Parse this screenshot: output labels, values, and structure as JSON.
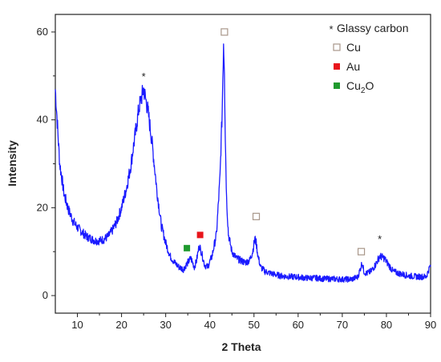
{
  "chart_data": {
    "type": "line",
    "title": "",
    "xlabel": "2 Theta",
    "ylabel": "Intensity",
    "xlim": [
      5,
      90
    ],
    "ylim": [
      -4,
      64
    ],
    "xticks": [
      10,
      20,
      30,
      40,
      50,
      60,
      70,
      80,
      90
    ],
    "yticks": [
      0,
      20,
      40,
      60
    ],
    "grid": false,
    "legend_position": "top-right",
    "series": [
      {
        "color": "#1a1aff",
        "x": [
          5,
          6,
          7,
          8,
          9,
          10,
          11,
          12,
          13,
          14,
          15,
          16,
          17,
          18,
          19,
          20,
          21,
          22,
          23,
          24,
          25,
          26,
          27,
          28,
          29,
          30,
          31,
          32,
          33,
          34,
          35,
          35.7,
          36.5,
          37,
          37.6,
          38.2,
          38.8,
          39.5,
          40.5,
          41.5,
          42.3,
          42.8,
          43.1,
          43.3,
          43.5,
          43.8,
          44.2,
          45,
          46,
          47,
          48,
          49,
          49.7,
          50.2,
          50.5,
          50.9,
          51.5,
          52.5,
          54,
          56,
          58,
          60,
          62,
          64,
          66,
          68,
          70,
          72,
          73.5,
          74.2,
          74.5,
          74.9,
          75.5,
          76.5,
          77.5,
          78.5,
          79.5,
          80.5,
          81.5,
          83,
          85,
          87,
          89,
          90
        ],
        "y": [
          47,
          30,
          23,
          19.5,
          17,
          15.5,
          14.5,
          13.5,
          13,
          12.5,
          12.5,
          12.8,
          13.5,
          15,
          17,
          20,
          24,
          29,
          36,
          43,
          47,
          42,
          34,
          24,
          16,
          12,
          9,
          7.5,
          6.5,
          6,
          7.5,
          8.5,
          6.5,
          8,
          11.5,
          9.5,
          7,
          6.5,
          9,
          14,
          27,
          42,
          58,
          52,
          36,
          22,
          14,
          10,
          8.5,
          8,
          7.5,
          8,
          10,
          13,
          12,
          9,
          6.5,
          5.5,
          5,
          4.5,
          4.3,
          4.2,
          4,
          4,
          3.8,
          3.8,
          3.7,
          3.7,
          4.2,
          6.5,
          7.5,
          5.5,
          5,
          5.5,
          7,
          9,
          8.5,
          7,
          5.5,
          5,
          4.5,
          4.3,
          4.3,
          7
        ]
      }
    ],
    "legend": [
      {
        "symbol": "*",
        "label": "Glassy carbon",
        "color": "#111111"
      },
      {
        "symbol": "hollow-square",
        "label": "Cu",
        "color": "#b9a89a"
      },
      {
        "symbol": "filled-square",
        "label": "Au",
        "color": "#e8151b"
      },
      {
        "symbol": "filled-square",
        "label_main": "Cu",
        "label_sub": "2",
        "label_tail": "O",
        "color": "#1f9a2e"
      }
    ],
    "annotations": [
      {
        "symbol": "*",
        "x": 25,
        "y": 50
      },
      {
        "symbol": "hollow-square",
        "x": 43.3,
        "y": 60
      },
      {
        "symbol": "hollow-square",
        "x": 50.5,
        "y": 18
      },
      {
        "symbol": "hollow-square",
        "x": 74.3,
        "y": 10
      },
      {
        "symbol": "*",
        "x": 78.5,
        "y": 13
      },
      {
        "symbol": "filled-square",
        "x": 37.8,
        "y": 13.8,
        "color": "#e8151b"
      },
      {
        "symbol": "filled-square",
        "x": 34.8,
        "y": 10.8,
        "color": "#1f9a2e"
      }
    ]
  }
}
